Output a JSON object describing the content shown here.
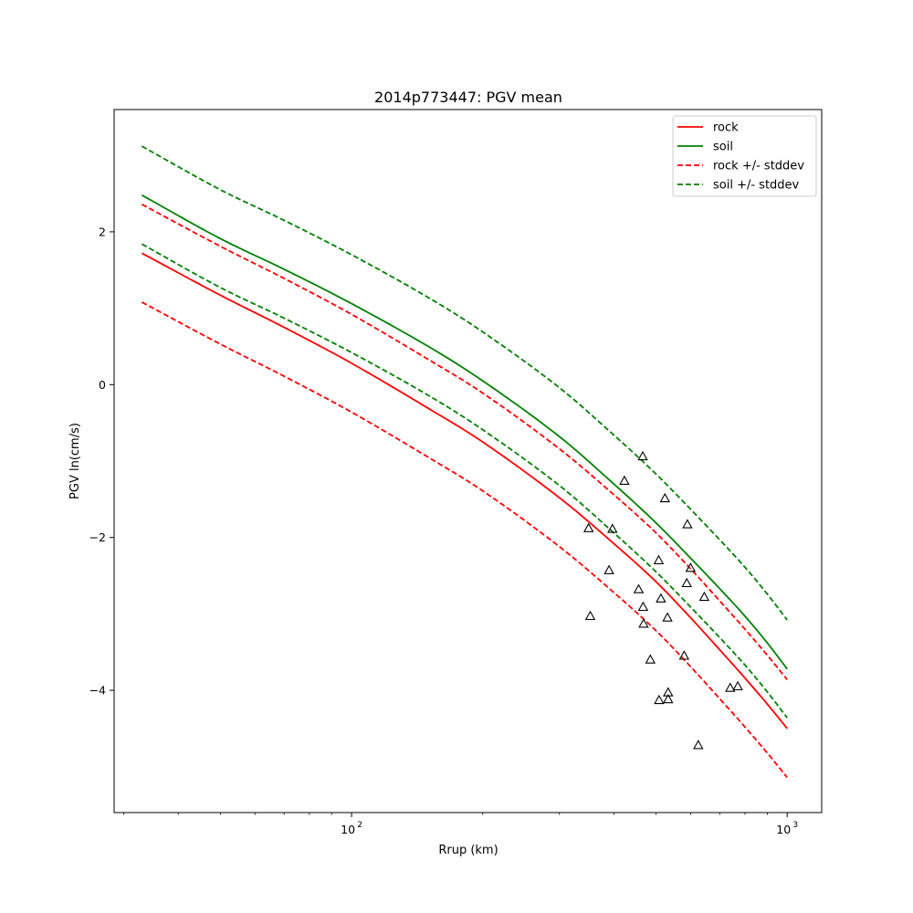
{
  "chart_data": {
    "type": "line",
    "title": "2014p773447: PGV mean",
    "xlabel": "Rrup (km)",
    "ylabel": "PGV ln(cm/s)",
    "xscale": "log",
    "xlim": [
      28.5,
      1200
    ],
    "ylim": [
      -5.6,
      3.6
    ],
    "xticks": [
      {
        "value": 100,
        "base": "10",
        "exp": "2"
      },
      {
        "value": 1000,
        "base": "10",
        "exp": "3"
      }
    ],
    "yticks": [
      {
        "value": 2,
        "label": "2"
      },
      {
        "value": 0,
        "label": "0"
      },
      {
        "value": -2,
        "label": "−2"
      },
      {
        "value": -4,
        "label": "−4"
      }
    ],
    "grid": false,
    "legend": {
      "placement": "top-right"
    },
    "series": [
      {
        "name": "rock",
        "color": "#ff0000",
        "dash": "solid",
        "x": [
          33,
          50,
          70,
          100,
          150,
          200,
          300,
          400,
          500,
          600,
          700,
          800,
          900,
          1000
        ],
        "y": [
          1.72,
          1.17,
          0.75,
          0.28,
          -0.31,
          -0.75,
          -1.48,
          -2.08,
          -2.58,
          -3.05,
          -3.47,
          -3.84,
          -4.18,
          -4.5
        ]
      },
      {
        "name": "soil",
        "color": "#008000",
        "dash": "solid",
        "x": [
          33,
          50,
          70,
          100,
          150,
          200,
          300,
          400,
          500,
          600,
          700,
          800,
          900,
          1000
        ],
        "y": [
          2.48,
          1.91,
          1.51,
          1.06,
          0.5,
          0.05,
          -0.68,
          -1.3,
          -1.81,
          -2.27,
          -2.67,
          -3.03,
          -3.38,
          -3.72
        ]
      },
      {
        "name": "rock +/- stddev",
        "color": "#ff0000",
        "dash": "dashed",
        "x": [
          33,
          50,
          70,
          100,
          150,
          200,
          300,
          400,
          500,
          600,
          700,
          800,
          900,
          1000
        ],
        "y": [
          2.36,
          1.81,
          1.39,
          0.92,
          0.33,
          -0.11,
          -0.84,
          -1.44,
          -1.94,
          -2.41,
          -2.83,
          -3.2,
          -3.54,
          -3.86
        ]
      },
      {
        "name": "",
        "color": "#ff0000",
        "dash": "dashed",
        "x": [
          33,
          50,
          70,
          100,
          150,
          200,
          300,
          400,
          500,
          600,
          700,
          800,
          900,
          1000
        ],
        "y": [
          1.08,
          0.53,
          0.11,
          -0.36,
          -0.95,
          -1.39,
          -2.12,
          -2.72,
          -3.22,
          -3.69,
          -4.11,
          -4.48,
          -4.82,
          -5.14
        ]
      },
      {
        "name": "soil +/- stddev",
        "color": "#008000",
        "dash": "dashed",
        "x": [
          33,
          50,
          70,
          100,
          150,
          200,
          300,
          400,
          500,
          600,
          700,
          800,
          900,
          1000
        ],
        "y": [
          3.12,
          2.55,
          2.15,
          1.7,
          1.14,
          0.69,
          -0.04,
          -0.66,
          -1.17,
          -1.63,
          -2.03,
          -2.39,
          -2.74,
          -3.08
        ]
      },
      {
        "name": "",
        "color": "#008000",
        "dash": "dashed",
        "x": [
          33,
          50,
          70,
          100,
          150,
          200,
          300,
          400,
          500,
          600,
          700,
          800,
          900,
          1000
        ],
        "y": [
          1.84,
          1.27,
          0.87,
          0.42,
          -0.14,
          -0.59,
          -1.32,
          -1.94,
          -2.45,
          -2.91,
          -3.31,
          -3.67,
          -4.02,
          -4.36
        ]
      }
    ],
    "observations": {
      "marker": "triangle",
      "x": [
        350,
        353,
        390,
        397,
        423,
        456,
        466,
        467,
        468,
        485,
        507,
        508,
        513,
        524,
        531,
        533,
        533,
        580,
        588,
        590,
        600,
        625,
        645,
        740,
        770
      ],
      "y": [
        -1.88,
        -3.03,
        -2.43,
        -1.89,
        -1.26,
        -2.68,
        -0.94,
        -2.91,
        -3.13,
        -3.6,
        -2.3,
        -4.13,
        -2.8,
        -1.49,
        -3.05,
        -4.03,
        -4.12,
        -3.55,
        -2.6,
        -1.83,
        -2.4,
        -4.72,
        -2.78,
        -3.97,
        -3.95
      ]
    }
  }
}
